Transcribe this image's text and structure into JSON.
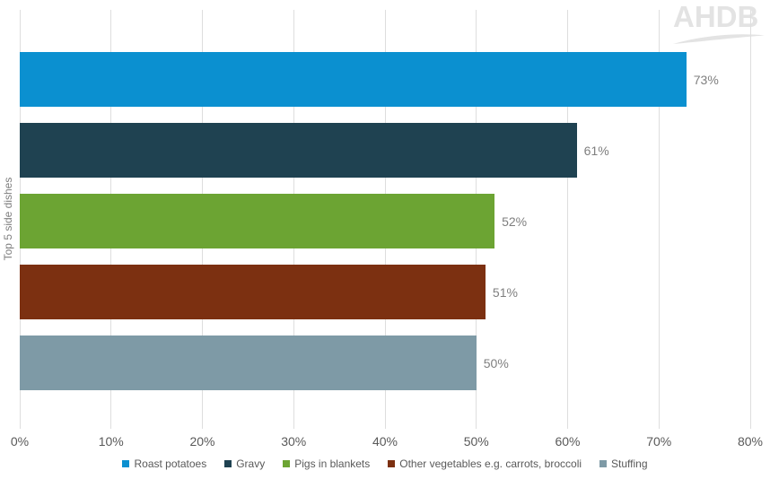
{
  "logo": {
    "text": "AHDB"
  },
  "chart_data": {
    "type": "bar",
    "orientation": "horizontal",
    "title": "",
    "xlabel": "",
    "ylabel": "Top 5 side dishes",
    "categories": [
      "Roast potatoes",
      "Gravy",
      "Pigs in blankets",
      "Other vegetables e.g. carrots, broccoli",
      "Stuffing"
    ],
    "values": [
      73,
      61,
      52,
      51,
      50
    ],
    "data_labels": [
      "73%",
      "61%",
      "52%",
      "51%",
      "50%"
    ],
    "bar_colors": [
      "#0B90D0",
      "#1F4251",
      "#6CA433",
      "#7C3011",
      "#7E9AA6"
    ],
    "xlim": [
      0,
      80
    ],
    "tick_values": [
      0,
      10,
      20,
      30,
      40,
      50,
      60,
      70,
      80
    ],
    "tick_labels": [
      "0%",
      "10%",
      "20%",
      "30%",
      "40%",
      "50%",
      "60%",
      "70%",
      "80%"
    ],
    "grid": true,
    "legend_position": "bottom"
  },
  "colors": {
    "background": "#FFFFFF",
    "gridline": "#DEDEDE",
    "axis_label": "#595959",
    "axis_title": "#7F7F7F",
    "data_label": "#7F7F7F",
    "legend_text": "#595959",
    "logo": "#E3E3E3"
  }
}
